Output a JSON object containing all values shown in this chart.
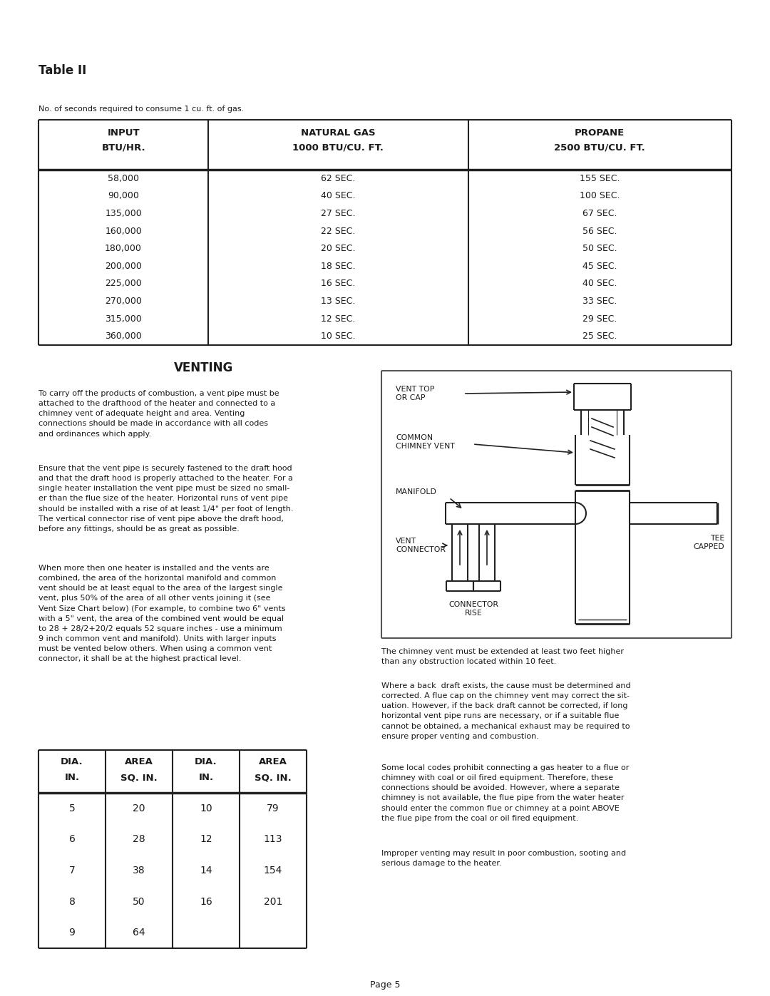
{
  "title": "Table II",
  "subtitle": "No. of seconds required to consume 1 cu. ft. of gas.",
  "table1_rows": [
    [
      "58,000",
      "62 SEC.",
      "155 SEC."
    ],
    [
      "90,000",
      "40 SEC.",
      "100 SEC."
    ],
    [
      "135,000",
      "27 SEC.",
      "67 SEC."
    ],
    [
      "160,000",
      "22 SEC.",
      "56 SEC."
    ],
    [
      "180,000",
      "20 SEC.",
      "50 SEC."
    ],
    [
      "200,000",
      "18 SEC.",
      "45 SEC."
    ],
    [
      "225,000",
      "16 SEC.",
      "40 SEC."
    ],
    [
      "270,000",
      "13 SEC.",
      "33 SEC."
    ],
    [
      "315,000",
      "12 SEC.",
      "29 SEC."
    ],
    [
      "360,000",
      "10 SEC.",
      "25 SEC."
    ]
  ],
  "venting_title": "VENTING",
  "venting_para1": "To carry off the products of combustion, a vent pipe must be\nattached to the drafthood of the heater and connected to a\nchimney vent of adequate height and area. Venting\nconnections should be made in accordance with all codes\nand ordinances which apply.",
  "venting_para2": "Ensure that the vent pipe is securely fastened to the draft hood\nand that the draft hood is properly attached to the heater. For a\nsingle heater installation the vent pipe must be sized no small-\ner than the flue size of the heater. Horizontal runs of vent pipe\nshould be installed with a rise of at least 1/4\" per foot of length.\nThe vertical connector rise of vent pipe above the draft hood,\nbefore any fittings, should be as great as possible.",
  "venting_para3": "When more then one heater is installed and the vents are\ncombined, the area of the horizontal manifold and common\nvent should be at least equal to the area of the largest single\nvent, plus 50% of the area of all other vents joining it (see\nVent Size Chart below) (For example, to combine two 6\" vents\nwith a 5\" vent, the area of the combined vent would be equal\nto 28 + 28/2+20/2 equals 52 square inches - use a minimum\n9 inch common vent and manifold). Units with larger inputs\nmust be vented below others. When using a common vent\nconnector, it shall be at the highest practical level.",
  "right_para1": "The chimney vent must be extended at least two feet higher\nthan any obstruction located within 10 feet.",
  "right_para2": "Where a back  draft exists, the cause must be determined and\ncorrected. A flue cap on the chimney vent may correct the sit-\nuation. However, if the back draft cannot be corrected, if long\nhorizontal vent pipe runs are necessary, or if a suitable flue\ncannot be obtained, a mechanical exhaust may be required to\nensure proper venting and combustion.",
  "right_para3": "Some local codes prohibit connecting a gas heater to a flue or\nchimney with coal or oil fired equipment. Therefore, these\nconnections should be avoided. However, where a separate\nchimney is not available, the flue pipe from the water heater\nshould enter the common flue or chimney at a point ABOVE\nthe flue pipe from the coal or oil fired equipment.",
  "right_para4": "Improper venting may result in poor combustion, sooting and\nserious damage to the heater.",
  "table2_rows": [
    [
      "5",
      "20",
      "10",
      "79"
    ],
    [
      "6",
      "28",
      "12",
      "113"
    ],
    [
      "7",
      "38",
      "14",
      "154"
    ],
    [
      "8",
      "50",
      "16",
      "201"
    ],
    [
      "9",
      "64",
      "",
      ""
    ]
  ],
  "page_num": "Page 5",
  "bg_color": "#ffffff",
  "text_color": "#1a1a1a"
}
